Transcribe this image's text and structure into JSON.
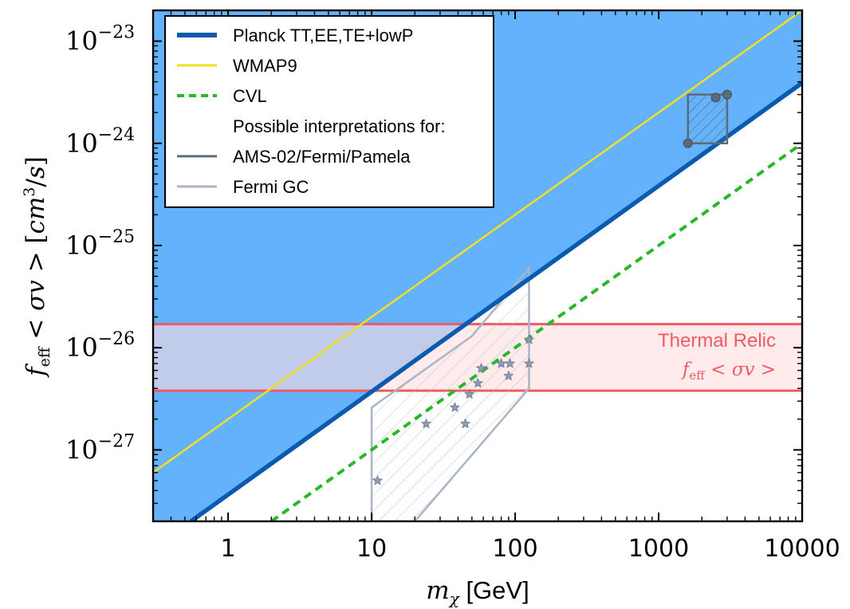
{
  "chart_data": {
    "type": "line",
    "xlabel_var": "m",
    "xlabel_sub": "χ",
    "xlabel_unit": " [GeV]",
    "ylabel": "f_eff < σv > [cm^3/s]",
    "xscale": "log",
    "yscale": "log",
    "xlim": [
      0.3,
      10000
    ],
    "ylim": [
      2e-28,
      2e-23
    ],
    "x_ticks": [
      {
        "value": 1,
        "label": "1"
      },
      {
        "value": 10,
        "label": "10"
      },
      {
        "value": 100,
        "label": "100"
      },
      {
        "value": 1000,
        "label": "1000"
      },
      {
        "value": 10000,
        "label": "10000"
      }
    ],
    "y_ticks": [
      {
        "value": 1e-27,
        "exp": "−27"
      },
      {
        "value": 1e-26,
        "exp": "−26"
      },
      {
        "value": 1e-25,
        "exp": "−25"
      },
      {
        "value": 1e-24,
        "exp": "−24"
      },
      {
        "value": 1e-23,
        "exp": "−23"
      }
    ],
    "series": [
      {
        "name": "Planck TT,EE,TE+lowP",
        "color": "#0a5bb0",
        "style": "solid-thick",
        "points": [
          [
            0.55,
            2e-28
          ],
          [
            10000,
            3.9e-24
          ]
        ],
        "fill_above": "#64b2fc"
      },
      {
        "name": "WMAP9",
        "color": "#f0e020",
        "style": "solid-thin",
        "points": [
          [
            0.3,
            6e-28
          ],
          [
            10000,
            2e-23
          ]
        ]
      },
      {
        "name": "CVL",
        "color": "#27b827",
        "style": "dashed",
        "points": [
          [
            2.0,
            2e-28
          ],
          [
            10000,
            1e-24
          ]
        ]
      }
    ],
    "interpretations_heading": "Possible interpretations for:",
    "interpretations": [
      {
        "name": "AMS-02/Fermi/Pamela",
        "color": "#5d6b78",
        "box": [
          [
            1600,
            1e-24
          ],
          [
            3000,
            3e-24
          ]
        ],
        "points": [
          [
            1600,
            1e-24
          ],
          [
            2500,
            2.8e-24
          ],
          [
            3000,
            3e-24
          ]
        ]
      },
      {
        "name": "Fermi GC",
        "color": "#a9b5c5",
        "polygon": [
          [
            10,
            2e-28
          ],
          [
            10,
            2.6e-27
          ],
          [
            50,
            1.3e-26
          ],
          [
            125,
            6e-26
          ],
          [
            125,
            4e-27
          ],
          [
            20,
            2e-28
          ]
        ],
        "stars": [
          [
            11,
            5e-28
          ],
          [
            24,
            1.8e-27
          ],
          [
            38,
            2.6e-27
          ],
          [
            45,
            1.8e-27
          ],
          [
            48,
            3.5e-27
          ],
          [
            55,
            4.5e-27
          ],
          [
            58,
            6.3e-27
          ],
          [
            80,
            7e-27
          ],
          [
            90,
            5.3e-27
          ],
          [
            92,
            7e-27
          ],
          [
            125,
            7e-27
          ],
          [
            125,
            1.2e-26
          ]
        ]
      }
    ],
    "thermal_relic": {
      "range": [
        3.8e-27,
        1.7e-26
      ],
      "color": "#f05a60",
      "fill": "#ffdde0",
      "label_line1": "Thermal Relic",
      "label_math": "f_eff < σv >"
    },
    "grid": false,
    "legend_position": "top-left"
  }
}
